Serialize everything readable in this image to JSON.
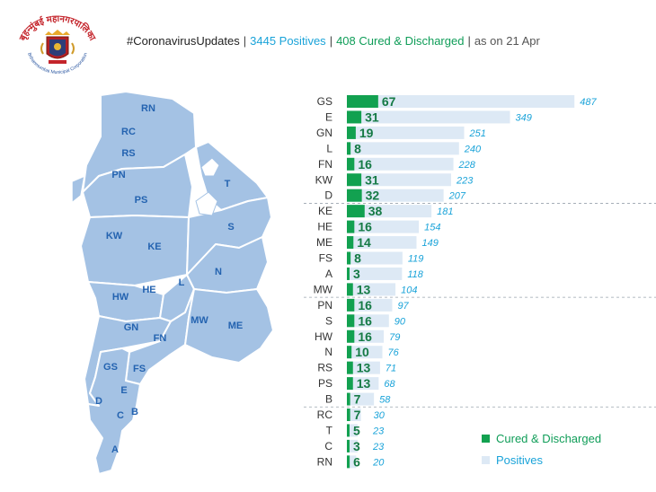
{
  "header": {
    "hashtag": "#CoronavirusUpdates",
    "positives": "3445 Positives",
    "cured": "408 Cured & Discharged",
    "date": "as on 21 Apr"
  },
  "logo": {
    "devanagari": "बृहन्मुंबई महानगरपालिका",
    "english": "Brihanmumbai Municipal Corporation"
  },
  "map": {
    "ward_labels": [
      "RN",
      "RC",
      "RS",
      "PN",
      "PS",
      "T",
      "KW",
      "KE",
      "S",
      "N",
      "HW",
      "HE",
      "L",
      "GN",
      "FN",
      "MW",
      "ME",
      "GS",
      "FS",
      "E",
      "D",
      "C",
      "B",
      "A"
    ]
  },
  "legend": {
    "cured_label": "Cured & Discharged",
    "positives_label": "Positives"
  },
  "colors": {
    "cured": "#12a150",
    "positives": "#dde9f5",
    "cured_text": "#0f9d58",
    "positives_text": "#1aa3d9",
    "map_fill": "#a4c2e4",
    "map_label": "#2463b0"
  },
  "chart_data": {
    "type": "bar",
    "title": "#CoronavirusUpdates | 3445 Positives | 408 Cured & Discharged | as on 21 Apr",
    "orientation": "horizontal",
    "categories": [
      "GS",
      "E",
      "GN",
      "L",
      "FN",
      "KW",
      "D",
      "KE",
      "HE",
      "ME",
      "FS",
      "A",
      "MW",
      "PN",
      "S",
      "HW",
      "N",
      "RS",
      "PS",
      "B",
      "RC",
      "T",
      "C",
      "RN"
    ],
    "series": [
      {
        "name": "Positives",
        "values": [
          487,
          349,
          251,
          240,
          228,
          223,
          207,
          181,
          154,
          149,
          119,
          118,
          104,
          97,
          90,
          79,
          76,
          71,
          68,
          58,
          30,
          23,
          23,
          20
        ]
      },
      {
        "name": "Cured & Discharged",
        "values": [
          67,
          31,
          19,
          8,
          16,
          31,
          32,
          38,
          16,
          14,
          8,
          3,
          13,
          16,
          16,
          16,
          10,
          13,
          13,
          7,
          7,
          5,
          3,
          6
        ]
      }
    ],
    "xlim": [
      0,
      500
    ],
    "legend_position": "bottom-right",
    "group_breaks_after": [
      "D",
      "MW",
      "B"
    ]
  }
}
